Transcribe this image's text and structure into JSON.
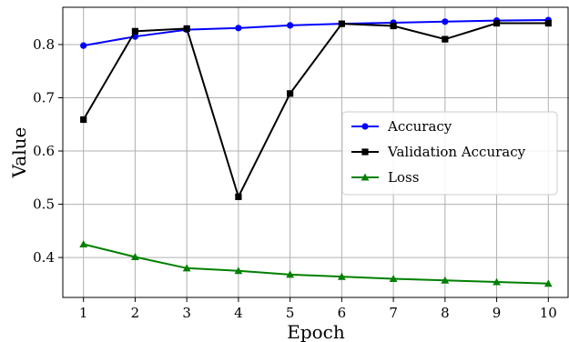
{
  "chart_data": {
    "type": "line",
    "x": [
      1,
      2,
      3,
      4,
      5,
      6,
      7,
      8,
      9,
      10
    ],
    "xlabel": "Epoch",
    "ylabel": "Value",
    "xlim": [
      0.6,
      10.4
    ],
    "ylim": [
      0.325,
      0.87
    ],
    "xticks": [
      1,
      2,
      3,
      4,
      5,
      6,
      7,
      8,
      9,
      10
    ],
    "yticks": [
      0.4,
      0.5,
      0.6,
      0.7,
      0.8
    ],
    "grid": true,
    "legend": "center-right",
    "series": [
      {
        "name": "Accuracy",
        "color": "#0000ff",
        "marker": "circle",
        "values": [
          0.798,
          0.815,
          0.828,
          0.831,
          0.836,
          0.839,
          0.841,
          0.843,
          0.845,
          0.846
        ]
      },
      {
        "name": "Validation Accuracy",
        "color": "#000000",
        "marker": "square",
        "values": [
          0.659,
          0.825,
          0.83,
          0.514,
          0.708,
          0.839,
          0.835,
          0.81,
          0.84,
          0.84
        ]
      },
      {
        "name": "Loss",
        "color": "#008000",
        "marker": "triangle",
        "values": [
          0.425,
          0.401,
          0.38,
          0.375,
          0.368,
          0.364,
          0.36,
          0.357,
          0.354,
          0.351
        ]
      }
    ]
  }
}
